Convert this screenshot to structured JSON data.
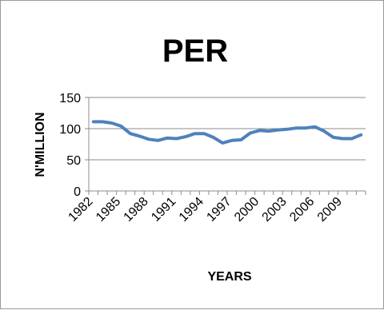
{
  "chart_data": {
    "type": "line",
    "title": "PER",
    "xlabel": "YEARS",
    "ylabel": "N'MILLION",
    "ylim": [
      0,
      150
    ],
    "yticks": [
      0,
      50,
      100,
      150
    ],
    "xticks": [
      "1982",
      "1985",
      "1988",
      "1991",
      "1994",
      "1997",
      "2000",
      "2003",
      "2006",
      "2009"
    ],
    "grid": true,
    "legend": "none",
    "line_color": "#4f81bd",
    "series": [
      {
        "x": [
          1982,
          1983,
          1984,
          1985,
          1986,
          1987,
          1988,
          1989,
          1990,
          1991,
          1992,
          1993,
          1994,
          1995,
          1996,
          1997,
          1998,
          1999,
          2000,
          2001,
          2002,
          2003,
          2004,
          2005,
          2006,
          2007,
          2008,
          2009,
          2010,
          2011
        ],
        "values": [
          111,
          111,
          109,
          104,
          92,
          88,
          83,
          81,
          85,
          84,
          87,
          92,
          92,
          86,
          77,
          81,
          82,
          93,
          97,
          96,
          98,
          99,
          101,
          101,
          103,
          96,
          86,
          84,
          84,
          90
        ]
      }
    ]
  }
}
